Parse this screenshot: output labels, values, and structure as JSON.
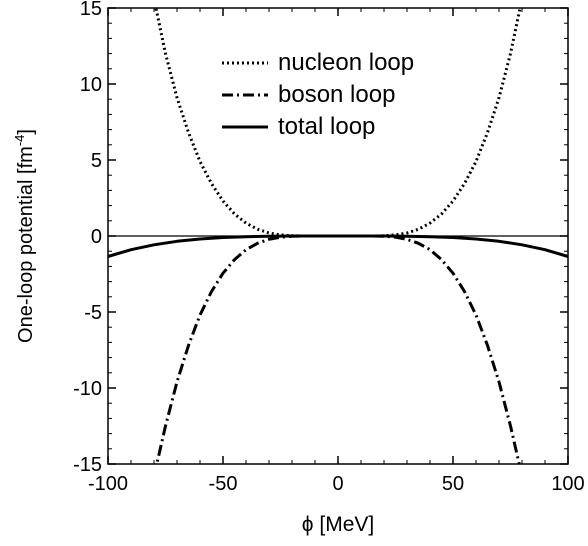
{
  "chart_data": {
    "type": "line",
    "xlabel_symbol": "ϕ",
    "xlabel_rest": " [MeV]",
    "ylabel_main": "One-loop potential [fm",
    "ylabel_sup": "-4",
    "ylabel_close": "]",
    "xlim": [
      -100,
      100
    ],
    "ylim": [
      -15,
      15
    ],
    "x_ticks": [
      -100,
      -50,
      0,
      50,
      100
    ],
    "x_tick_labels": [
      "-100",
      "-50",
      "0",
      "50",
      "100"
    ],
    "y_ticks": [
      -15,
      -10,
      -5,
      0,
      5,
      10,
      15
    ],
    "y_tick_labels": [
      "-15",
      "-10",
      "-5",
      "0",
      "5",
      "10",
      "15"
    ],
    "zero_line": true,
    "grid": false,
    "legend_placement": "top-center",
    "series": [
      {
        "name": "nucleon loop",
        "style": "dotted",
        "x": [
          -80,
          -75,
          -70,
          -65,
          -60,
          -55,
          -50,
          -45,
          -40,
          -35,
          -30,
          -25,
          -20,
          -15,
          -10,
          -5,
          0,
          5,
          10,
          15,
          20,
          25,
          30,
          35,
          40,
          45,
          50,
          55,
          60,
          65,
          70,
          75,
          80
        ],
        "y": [
          15.6,
          12.0,
          9.1,
          6.8,
          4.9,
          3.45,
          2.3,
          1.45,
          0.85,
          0.45,
          0.2,
          0.07,
          0.02,
          0.0,
          0.0,
          0.0,
          0.0,
          0.0,
          0.0,
          0.0,
          0.02,
          0.07,
          0.2,
          0.45,
          0.85,
          1.45,
          2.3,
          3.45,
          4.9,
          6.8,
          9.1,
          12.0,
          15.6
        ]
      },
      {
        "name": "boson loop",
        "style": "dashdot",
        "x": [
          -80,
          -75,
          -70,
          -65,
          -60,
          -55,
          -50,
          -45,
          -40,
          -35,
          -30,
          -25,
          -20,
          -15,
          -10,
          -5,
          0,
          5,
          10,
          15,
          20,
          25,
          30,
          35,
          40,
          45,
          50,
          55,
          60,
          65,
          70,
          75,
          80
        ],
        "y": [
          -15.8,
          -12.5,
          -9.6,
          -7.2,
          -5.2,
          -3.65,
          -2.45,
          -1.55,
          -0.9,
          -0.48,
          -0.22,
          -0.08,
          -0.02,
          0.0,
          0.0,
          0.0,
          0.0,
          0.0,
          0.0,
          0.0,
          -0.02,
          -0.08,
          -0.22,
          -0.48,
          -0.9,
          -1.55,
          -2.45,
          -3.65,
          -5.2,
          -7.2,
          -9.6,
          -12.5,
          -15.8
        ]
      },
      {
        "name": "total loop",
        "style": "solid",
        "x": [
          -100,
          -90,
          -80,
          -70,
          -60,
          -50,
          -40,
          -30,
          -20,
          -10,
          0,
          10,
          20,
          30,
          40,
          50,
          60,
          70,
          80,
          90,
          100
        ],
        "y": [
          -1.35,
          -0.9,
          -0.58,
          -0.35,
          -0.2,
          -0.1,
          -0.045,
          -0.015,
          -0.003,
          0.0,
          0.0,
          0.0,
          -0.003,
          -0.015,
          -0.045,
          -0.1,
          -0.2,
          -0.35,
          -0.58,
          -0.9,
          -1.35
        ]
      }
    ]
  }
}
